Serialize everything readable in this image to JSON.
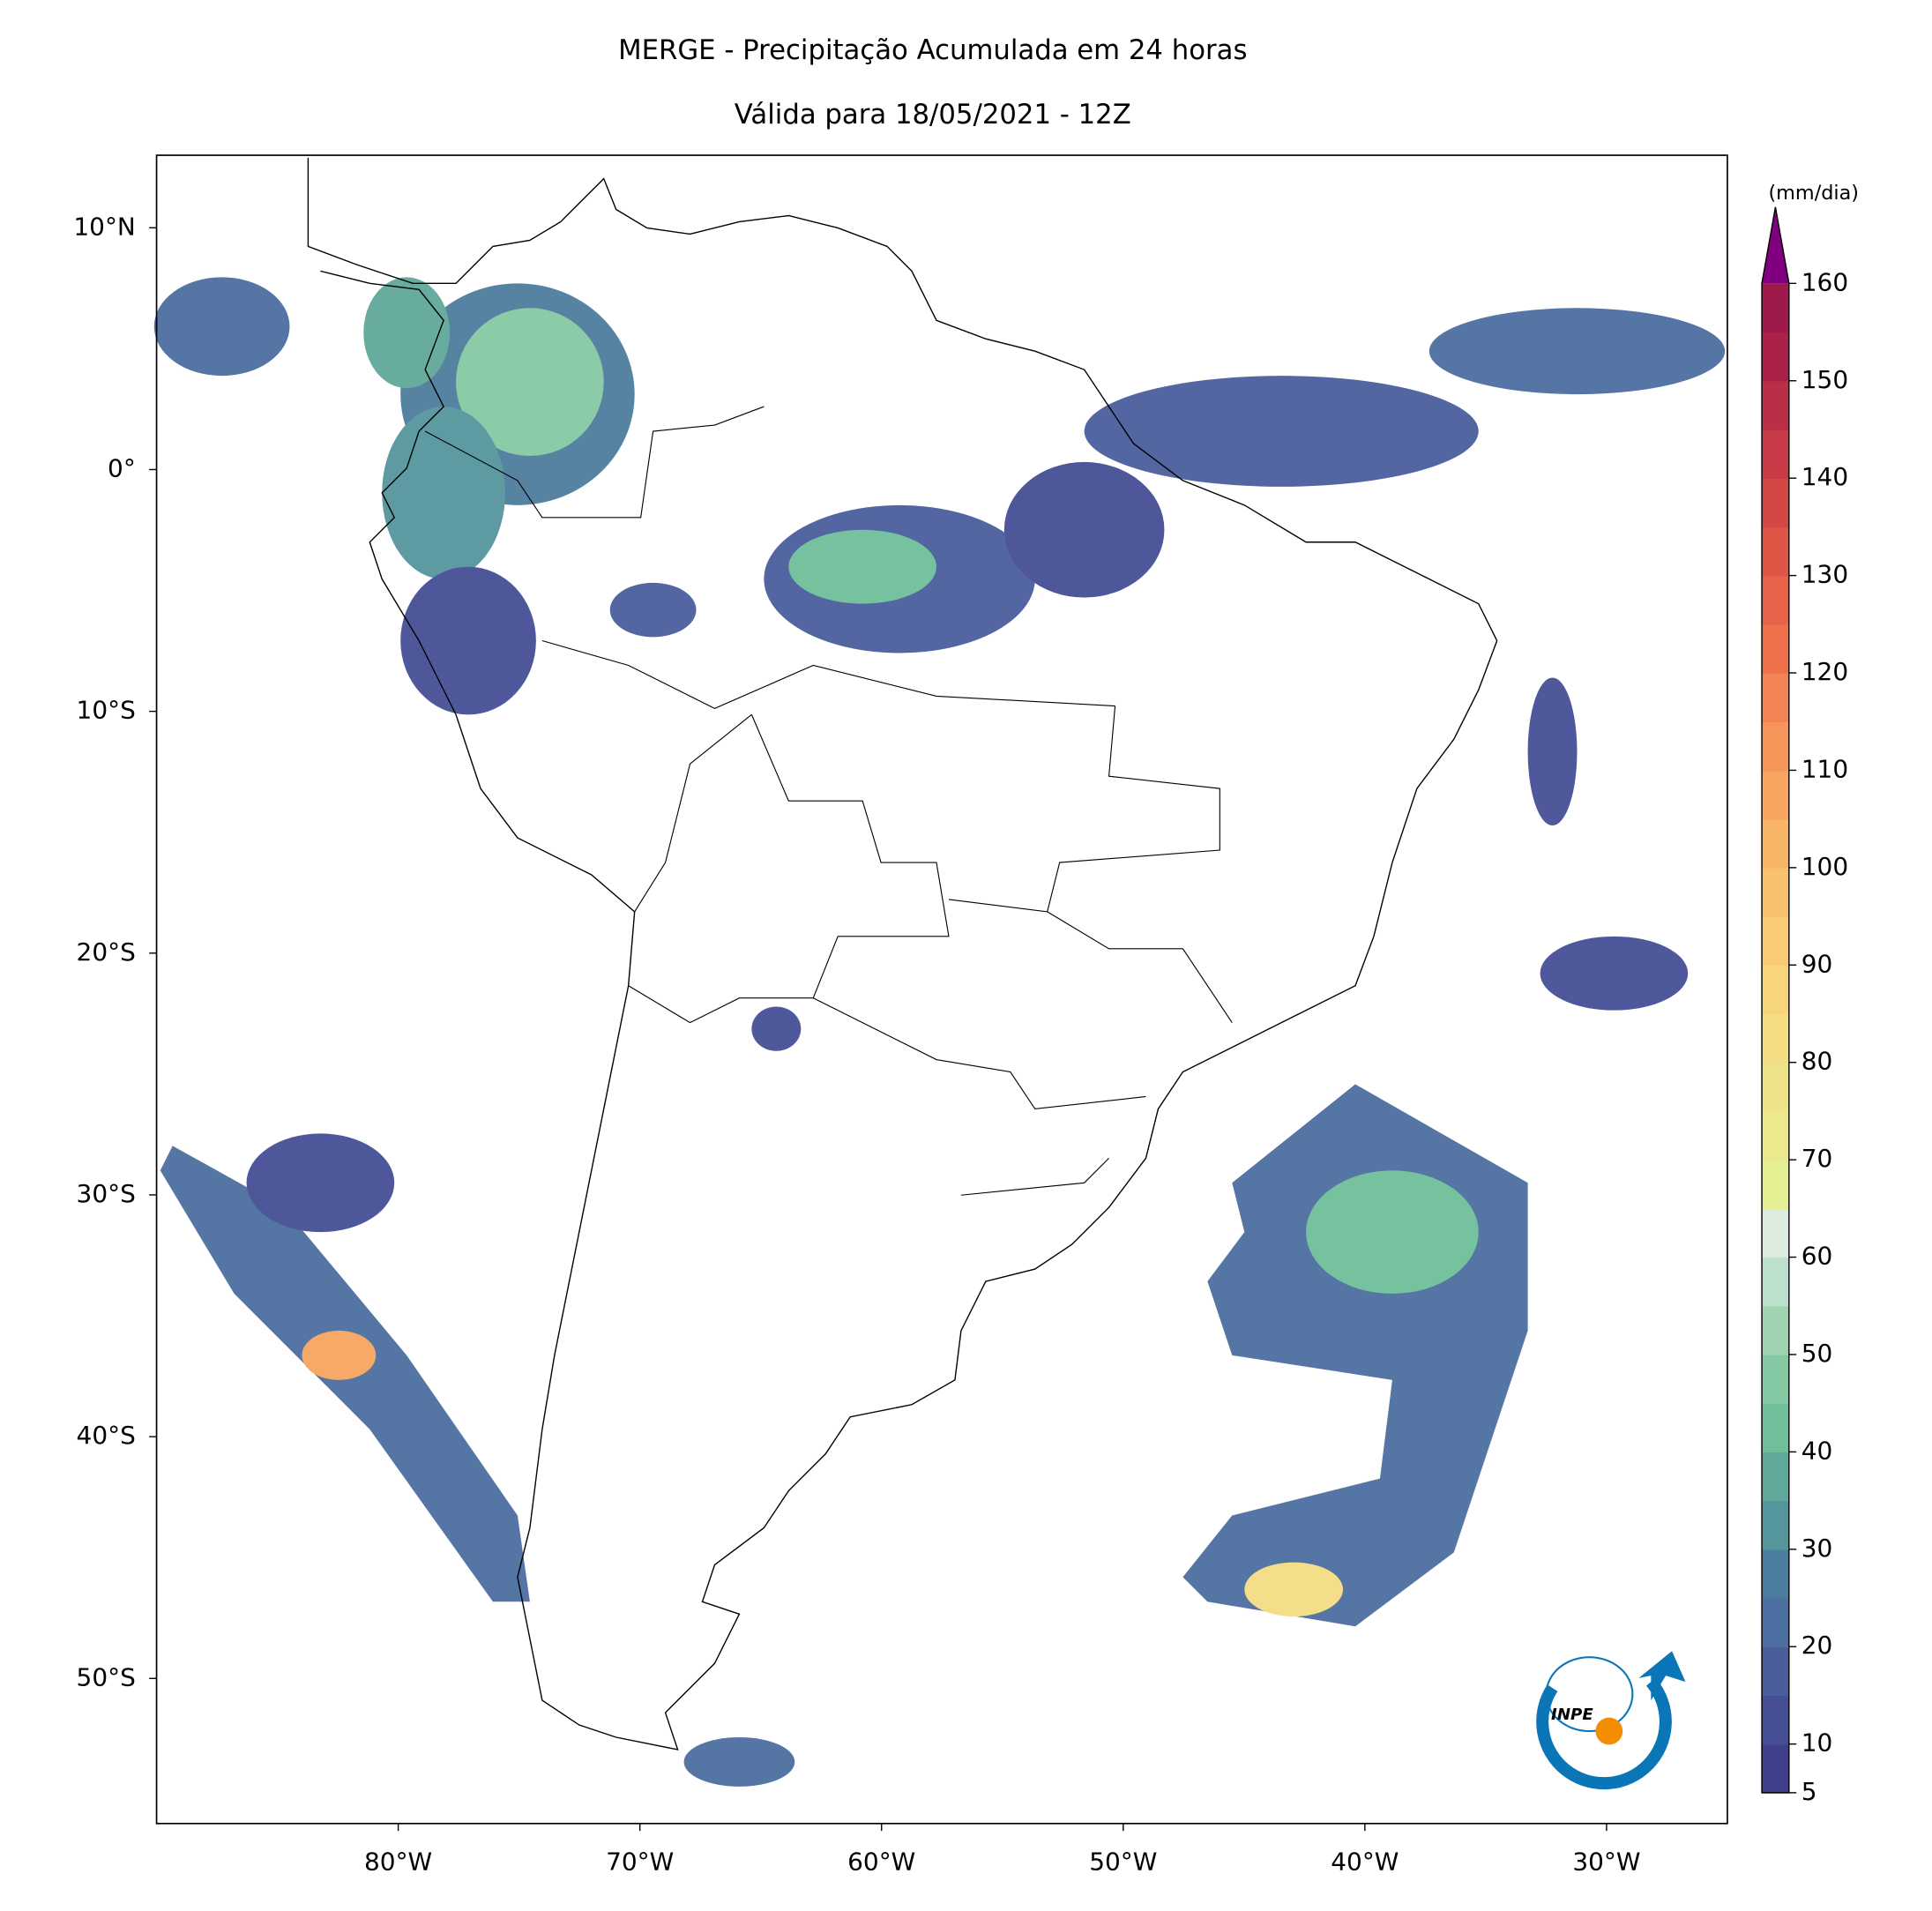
{
  "title": "MERGE - Precipitação Acumulada em 24 horas",
  "subtitle": "Válida para 18/05/2021 - 12Z",
  "map": {
    "lonlim": [
      -90,
      -25
    ],
    "latlim": [
      -56,
      13
    ],
    "xticks": [
      {
        "value": -80,
        "label": "80°W"
      },
      {
        "value": -70,
        "label": "70°W"
      },
      {
        "value": -60,
        "label": "60°W"
      },
      {
        "value": -50,
        "label": "50°W"
      },
      {
        "value": -40,
        "label": "40°W"
      },
      {
        "value": -30,
        "label": "30°W"
      }
    ],
    "yticks": [
      {
        "value": 10,
        "label": "10°N"
      },
      {
        "value": 0,
        "label": "0°"
      },
      {
        "value": -10,
        "label": "10°S"
      },
      {
        "value": -20,
        "label": "20°S"
      },
      {
        "value": -30,
        "label": "30°S"
      },
      {
        "value": -40,
        "label": "40°S"
      },
      {
        "value": -50,
        "label": "50°S"
      }
    ]
  },
  "colorbar": {
    "label": "(mm/dia)",
    "lim": [
      5,
      160
    ],
    "ticks": [
      5,
      10,
      20,
      30,
      40,
      50,
      60,
      70,
      80,
      90,
      100,
      110,
      120,
      130,
      140,
      150,
      160
    ],
    "colors": [
      "#3f3f8c",
      "#464f96",
      "#4a5e9c",
      "#4c6ea0",
      "#4d7d9e",
      "#55959c",
      "#5fa89a",
      "#6fbf9a",
      "#85c9a4",
      "#9fd3b2",
      "#bde0cc",
      "#dcecde",
      "#e5ef94",
      "#ebe98e",
      "#efe389",
      "#f4dd83",
      "#f8d57c",
      "#f9cb76",
      "#f8c170",
      "#f8b567",
      "#f7a560",
      "#f6955a",
      "#f28352",
      "#ee714c",
      "#e76248",
      "#de5445",
      "#d44744",
      "#c83a45",
      "#bb2e47",
      "#ab2249",
      "#9e1a4a"
    ],
    "extend_color": "#800080"
  },
  "logo": "INPE"
}
